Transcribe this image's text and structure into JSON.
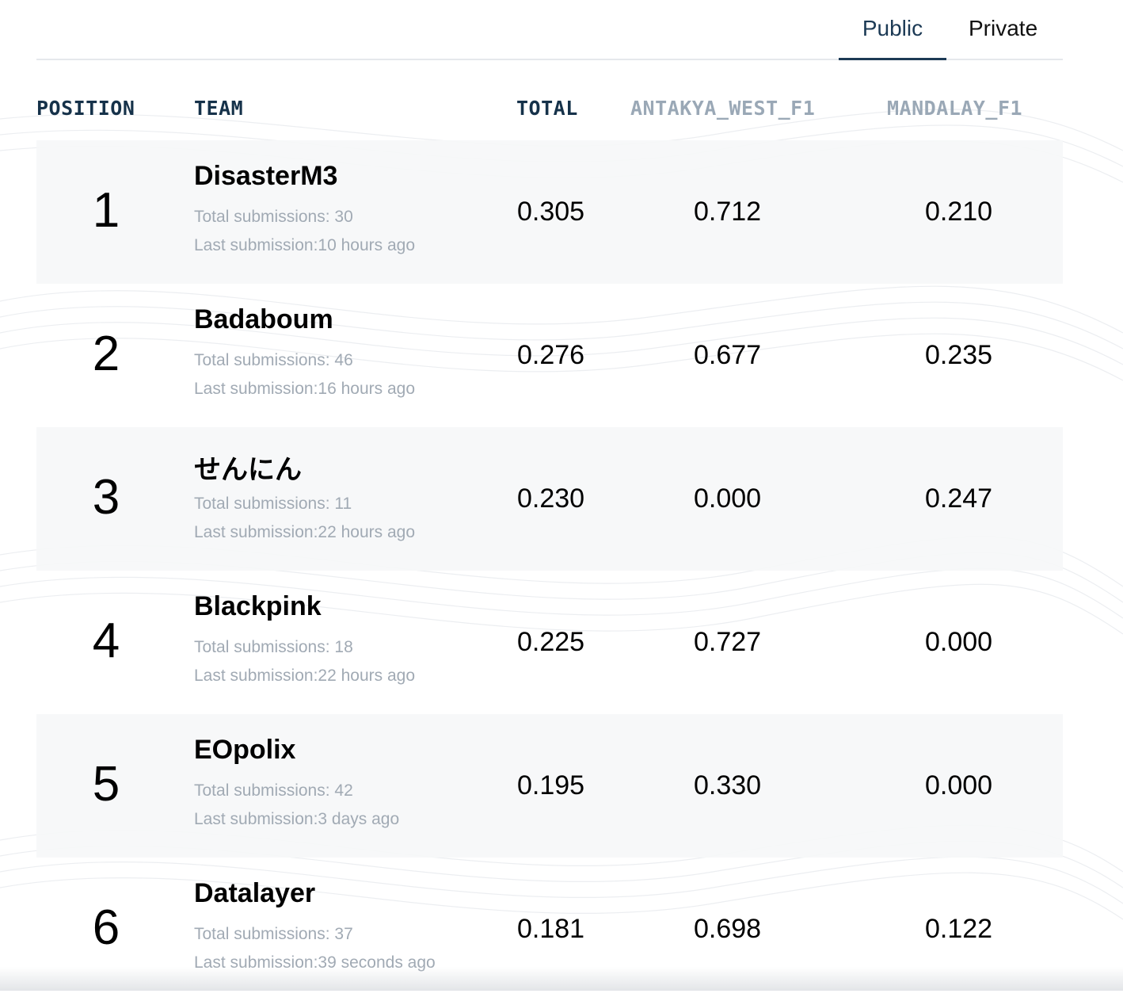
{
  "tabs": {
    "public_label": "Public",
    "private_label": "Private"
  },
  "columns": {
    "position": "POSITION",
    "team": "TEAM",
    "total": "TOTAL",
    "antakya": "ANTAKYA_WEST_F1",
    "mandalay": "MANDALAY_F1"
  },
  "rows": [
    {
      "position": "1",
      "team": "DisasterM3",
      "submissions": "Total submissions: 30",
      "last": "Last submission:10 hours ago",
      "total": "0.305",
      "antakya": "0.712",
      "mandalay": "0.210"
    },
    {
      "position": "2",
      "team": "Badaboum",
      "submissions": "Total submissions: 46",
      "last": "Last submission:16 hours ago",
      "total": "0.276",
      "antakya": "0.677",
      "mandalay": "0.235"
    },
    {
      "position": "3",
      "team": "せんにん",
      "submissions": "Total submissions: 11",
      "last": "Last submission:22 hours ago",
      "total": "0.230",
      "antakya": "0.000",
      "mandalay": "0.247"
    },
    {
      "position": "4",
      "team": "Blackpink",
      "submissions": "Total submissions: 18",
      "last": "Last submission:22 hours ago",
      "total": "0.225",
      "antakya": "0.727",
      "mandalay": "0.000"
    },
    {
      "position": "5",
      "team": "EOpolix",
      "submissions": "Total submissions: 42",
      "last": "Last submission:3 days ago",
      "total": "0.195",
      "antakya": "0.330",
      "mandalay": "0.000"
    },
    {
      "position": "6",
      "team": "Datalayer",
      "submissions": "Total submissions: 37",
      "last": "Last submission:39 seconds ago",
      "total": "0.181",
      "antakya": "0.698",
      "mandalay": "0.122"
    }
  ]
}
